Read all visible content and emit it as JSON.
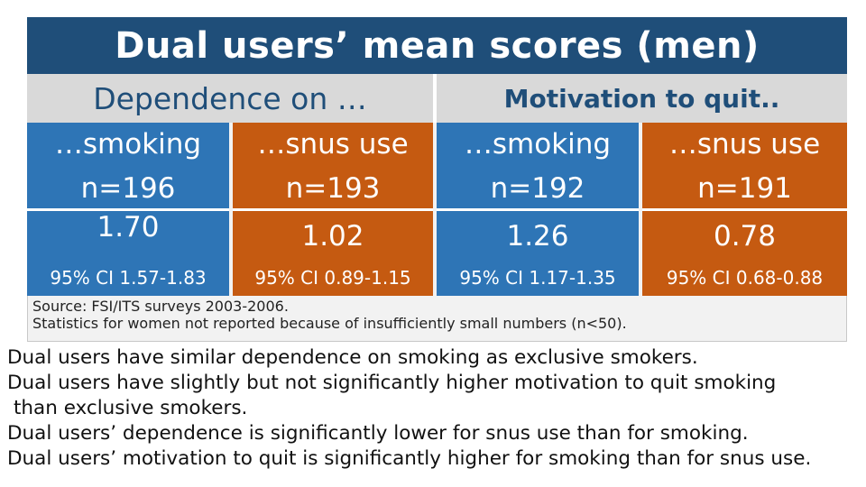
{
  "title": "Dual users’ mean scores (men)",
  "headers": {
    "left": "Dependence on …",
    "right": "Motivation to quit.."
  },
  "columns": [
    {
      "label": "…smoking",
      "n": "n=196",
      "value": "1.70",
      "ci": "95% CI 1.57-1.83",
      "color": "#2e75b6"
    },
    {
      "label": "…snus use",
      "n": "n=193",
      "value": "1.02",
      "ci": "95% CI 0.89-1.15",
      "color": "#c55a11"
    },
    {
      "label": "…smoking",
      "n": "n=192",
      "value": "1.26",
      "ci": "95% CI 1.17-1.35",
      "color": "#2e75b6"
    },
    {
      "label": "…snus use",
      "n": "n=191",
      "value": "0.78",
      "ci": "95% CI 0.68-0.88",
      "color": "#c55a11"
    }
  ],
  "source": {
    "line1": "Source: FSI/ITS surveys 2003-2006.",
    "line2": "Statistics for women not reported because of insufficiently small numbers (n<50)."
  },
  "notes": [
    "Dual users have similar dependence on smoking as exclusive smokers.",
    "Dual users have slightly but not significantly higher motivation to quit smoking",
    "than exclusive smokers.",
    "Dual users’ dependence is significantly lower for snus use than for smoking.",
    "Dual users’ motivation to quit is significantly higher for smoking than for snus use."
  ]
}
